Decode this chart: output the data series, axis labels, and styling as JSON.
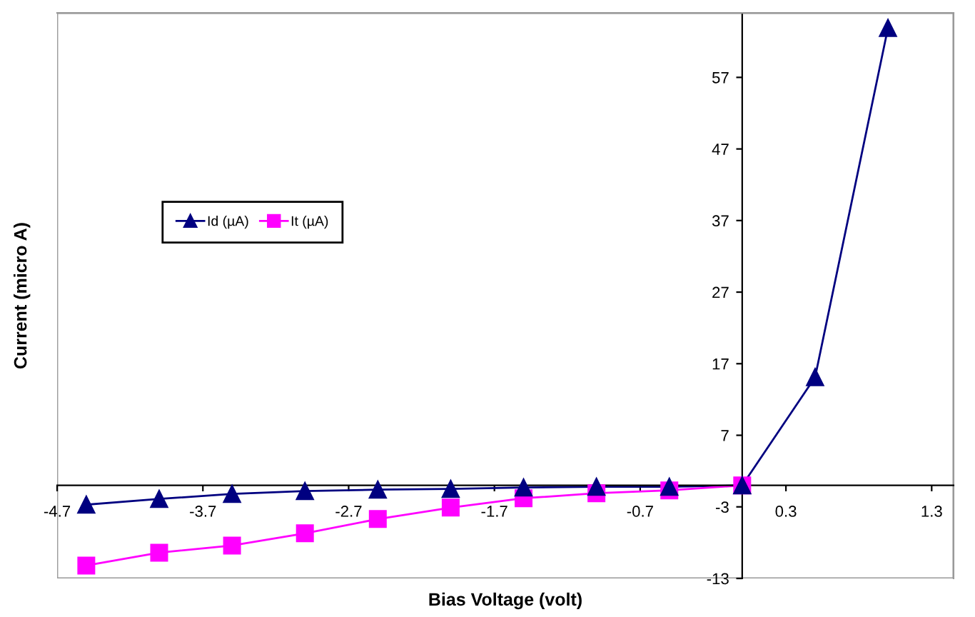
{
  "chart_data": {
    "type": "line",
    "xlabel": "Bias Voltage (volt)",
    "ylabel": "Current (micro A)",
    "x": [
      -4.5,
      -4.0,
      -3.5,
      -3.0,
      -2.5,
      -2.0,
      -1.5,
      -1.0,
      -0.5,
      0.0,
      0.5,
      1.0
    ],
    "series": [
      {
        "name": "Id (µA)",
        "color": "#000080",
        "marker": "triangle",
        "values": [
          -2.7,
          -1.9,
          -1.2,
          -0.8,
          -0.6,
          -0.5,
          -0.3,
          -0.2,
          -0.2,
          0,
          15.1,
          63.9
        ]
      },
      {
        "name": "It (µA)",
        "color": "#ff00ff",
        "marker": "square",
        "x": [
          -4.5,
          -4.0,
          -3.5,
          -3.0,
          -2.5,
          -2.0,
          -1.5,
          -1.0,
          -0.5,
          0.0
        ],
        "values": [
          -11.2,
          -9.4,
          -8.4,
          -6.7,
          -4.7,
          -3.1,
          -1.8,
          -1.1,
          -0.7,
          0
        ]
      }
    ],
    "xlim": [
      -4.7,
      1.45
    ],
    "ylim": [
      -13,
      66
    ],
    "xticks": [
      -4.7,
      -3.7,
      -2.7,
      -1.7,
      -0.7,
      0.3,
      1.3
    ],
    "yticks": [
      -13,
      -3,
      7,
      17,
      27,
      37,
      47,
      57
    ],
    "grid": false,
    "legend": "top left",
    "line_style": "solid"
  }
}
